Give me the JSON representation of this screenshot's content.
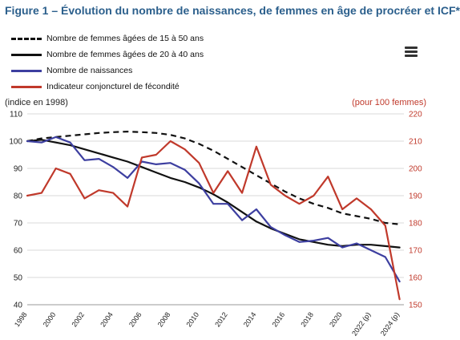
{
  "title": "Figure 1 – Évolution du nombre de naissances, de femmes en âge de procréer et ICF*",
  "colors": {
    "title": "#2b5f8c",
    "right_axis": "#c0392b",
    "grid": "#d9d9d9"
  },
  "menu_icon": "hamburger-menu-icon",
  "chart_data": {
    "type": "line",
    "left_axis": {
      "label": "(indice en 1998)",
      "ylim": [
        40,
        110
      ],
      "ticks": [
        40,
        50,
        60,
        70,
        80,
        90,
        100,
        110
      ]
    },
    "right_axis": {
      "label": "(pour 100 femmes)",
      "ylim": [
        150,
        220
      ],
      "ticks": [
        150,
        160,
        170,
        180,
        190,
        200,
        210,
        220
      ]
    },
    "x_ticks": [
      "1998",
      "2000",
      "2002",
      "2004",
      "2006",
      "2008",
      "2010",
      "2012",
      "2014",
      "2016",
      "2018",
      "2020",
      "2022 (p)",
      "2024 (p)"
    ],
    "x": [
      1998,
      1999,
      2000,
      2001,
      2002,
      2003,
      2004,
      2005,
      2006,
      2007,
      2008,
      2009,
      2010,
      2011,
      2012,
      2013,
      2014,
      2015,
      2016,
      2017,
      2018,
      2019,
      2020,
      2021,
      2022,
      2023,
      2024
    ],
    "grid": true,
    "series": [
      {
        "name": "Nombre de femmes âgées de 15 à 50 ans",
        "axis": "left",
        "color": "#111111",
        "dash": true,
        "values": [
          100,
          101,
          101.5,
          102,
          102.5,
          103,
          103.3,
          103.5,
          103.3,
          103,
          102.3,
          101,
          99,
          96.5,
          93.5,
          90.5,
          87.5,
          84.5,
          81.5,
          79,
          77,
          75.5,
          73.5,
          72.5,
          71.5,
          70,
          69.5
        ]
      },
      {
        "name": "Nombre de femmes âgées de 20 à 40 ans",
        "axis": "left",
        "color": "#111111",
        "dash": false,
        "values": [
          100,
          100.5,
          99.5,
          98.5,
          97,
          95.5,
          94,
          92.5,
          90.5,
          88.5,
          86.5,
          85,
          83,
          80.5,
          77.5,
          74,
          70.5,
          68,
          66,
          64,
          63,
          62,
          61.5,
          62,
          62,
          61.5,
          61
        ]
      },
      {
        "name": "Nombre de naissances",
        "axis": "left",
        "color": "#3d3fa0",
        "dash": false,
        "values": [
          100,
          99.5,
          101.5,
          99.5,
          93,
          93.5,
          90.5,
          86.5,
          92.5,
          91.5,
          92,
          89.5,
          84.5,
          77,
          77,
          71,
          75,
          68.5,
          65.5,
          63,
          63.5,
          64.5,
          61,
          62.5,
          60,
          57.5,
          48.5
        ]
      },
      {
        "name": "Indicateur conjoncturel de fécondité",
        "axis": "right",
        "color": "#c0392b",
        "dash": false,
        "values": [
          190,
          191,
          200,
          198,
          189,
          192,
          191,
          186,
          204,
          205,
          210,
          207,
          202,
          191,
          199,
          191,
          208,
          194,
          190,
          187,
          190,
          197,
          185,
          189,
          185,
          179,
          152
        ]
      }
    ]
  }
}
